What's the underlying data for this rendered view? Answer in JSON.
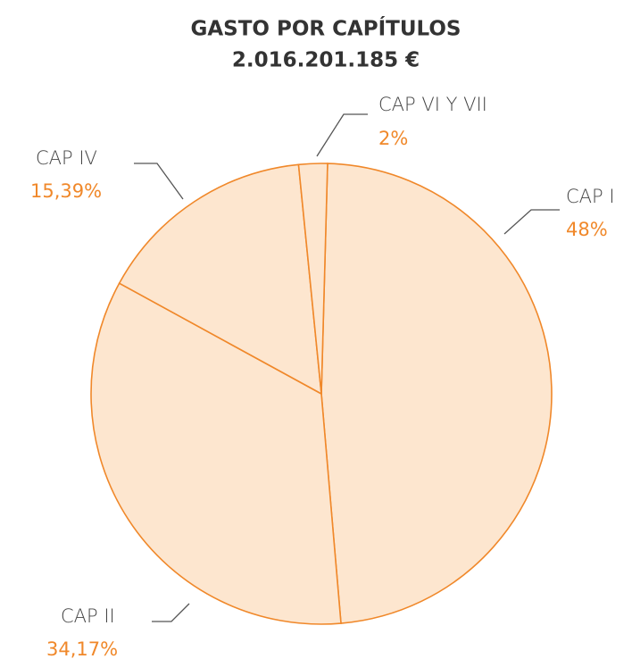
{
  "chart_data": {
    "type": "pie",
    "title": "GASTO POR CAPÍTULOS",
    "subtitle": "2.016.201.185 €",
    "categories": [
      "CAP I",
      "CAP II",
      "CAP IV",
      "CAP VI Y VII"
    ],
    "values": [
      48,
      34.17,
      15.39,
      2
    ],
    "value_labels": [
      "48%",
      "34,17%",
      "15,39%",
      "2%"
    ],
    "color": "#fde6cf",
    "edge_color": "#f0882a",
    "label_color": "#f0882a"
  }
}
